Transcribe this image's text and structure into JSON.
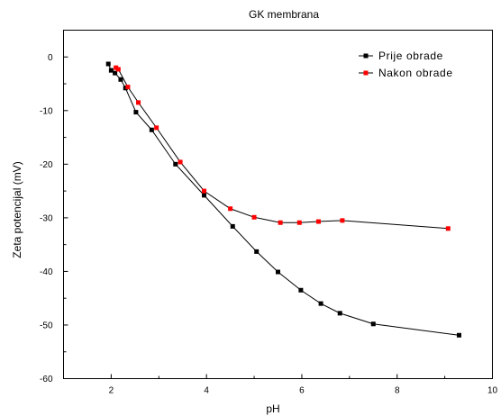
{
  "chart_data": {
    "type": "line",
    "title": "GK membrana",
    "xlabel": "pH",
    "ylabel": "Zeta potencijal (mV)",
    "xlim": [
      1,
      10
    ],
    "ylim": [
      -60,
      5
    ],
    "x_ticks": [
      2,
      4,
      6,
      8,
      10
    ],
    "y_ticks": [
      0,
      -10,
      -20,
      -30,
      -40,
      -50,
      -60
    ],
    "legend_position": "top-right",
    "grid": false,
    "series": [
      {
        "name": "Prije obrade",
        "color": "#000000",
        "marker": "square",
        "points": [
          [
            1.94,
            -1.3
          ],
          [
            2.0,
            -2.5
          ],
          [
            2.08,
            -3.0
          ],
          [
            2.2,
            -4.2
          ],
          [
            2.3,
            -5.8
          ],
          [
            2.52,
            -10.3
          ],
          [
            2.85,
            -13.6
          ],
          [
            3.35,
            -20.0
          ],
          [
            3.95,
            -25.8
          ],
          [
            4.55,
            -31.6
          ],
          [
            5.05,
            -36.3
          ],
          [
            5.5,
            -40.1
          ],
          [
            5.98,
            -43.5
          ],
          [
            6.4,
            -46.0
          ],
          [
            6.8,
            -47.8
          ],
          [
            7.5,
            -49.8
          ],
          [
            9.3,
            -51.9
          ]
        ]
      },
      {
        "name": "Nakon obrade",
        "color": "#ff0000",
        "marker": "square",
        "points": [
          [
            2.1,
            -2.0
          ],
          [
            2.15,
            -2.3
          ],
          [
            2.35,
            -5.6
          ],
          [
            2.57,
            -8.5
          ],
          [
            2.95,
            -13.2
          ],
          [
            3.45,
            -19.6
          ],
          [
            3.95,
            -25.0
          ],
          [
            4.5,
            -28.3
          ],
          [
            5.0,
            -29.9
          ],
          [
            5.55,
            -30.9
          ],
          [
            5.95,
            -30.9
          ],
          [
            6.35,
            -30.7
          ],
          [
            6.85,
            -30.5
          ],
          [
            9.07,
            -32.0
          ]
        ]
      }
    ]
  }
}
